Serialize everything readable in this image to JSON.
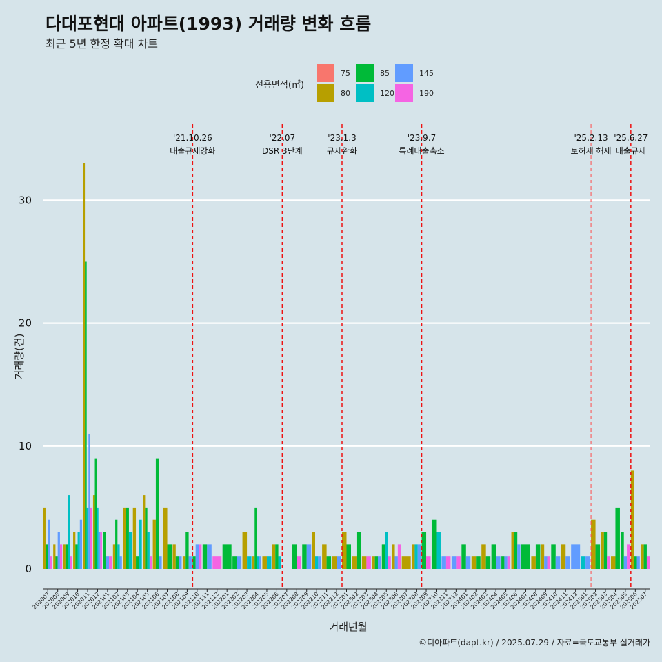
{
  "title": "다대포현대 아파트(1993) 거래량 변화 흐름",
  "subtitle": "최근 5년 한정 확대 차트",
  "caption": "©디아파트(dapt.kr) / 2025.07.29 / 자료=국토교통부 실거래가",
  "chart_data": {
    "type": "bar",
    "xlabel": "거래년월",
    "ylabel": "거래량(건)",
    "ylim": [
      -1.6,
      34.5
    ],
    "yticks": [
      0,
      10,
      20,
      30
    ],
    "grid": true,
    "legend": {
      "title": "전용면적(㎡)",
      "placement": "top",
      "entries": [
        {
          "name": "75",
          "color": "#F8766D"
        },
        {
          "name": "80",
          "color": "#B79F00"
        },
        {
          "name": "85",
          "color": "#00BA38"
        },
        {
          "name": "120",
          "color": "#00BFC4"
        },
        {
          "name": "145",
          "color": "#619CFF"
        },
        {
          "name": "190",
          "color": "#F564E3"
        }
      ]
    },
    "categories": [
      "202007",
      "202008",
      "202009",
      "202010",
      "202011",
      "202012",
      "202101",
      "202102",
      "202103",
      "202104",
      "202105",
      "202106",
      "202107",
      "202108",
      "202109",
      "202110",
      "202111",
      "202112",
      "202201",
      "202202",
      "202203",
      "202204",
      "202205",
      "202206",
      "202207",
      "202208",
      "202209",
      "202210",
      "202211",
      "202212",
      "202301",
      "202302",
      "202303",
      "202304",
      "202305",
      "202306",
      "202307",
      "202308",
      "202309",
      "202310",
      "202311",
      "202312",
      "202401",
      "202402",
      "202403",
      "202404",
      "202405",
      "202406",
      "202407",
      "202408",
      "202409",
      "202410",
      "202411",
      "202412",
      "202501",
      "202502",
      "202503",
      "202504",
      "202505",
      "202506",
      "202507"
    ],
    "bars": [
      [
        "202007",
        "80",
        5
      ],
      [
        "202007",
        "85",
        2
      ],
      [
        "202007",
        "145",
        4
      ],
      [
        "202007",
        "190",
        1
      ],
      [
        "202008",
        "80",
        2
      ],
      [
        "202008",
        "85",
        1
      ],
      [
        "202008",
        "145",
        3
      ],
      [
        "202008",
        "190",
        2
      ],
      [
        "202009",
        "80",
        2
      ],
      [
        "202009",
        "85",
        2
      ],
      [
        "202009",
        "120",
        6
      ],
      [
        "202009",
        "190",
        1
      ],
      [
        "202010",
        "80",
        3
      ],
      [
        "202010",
        "85",
        2
      ],
      [
        "202010",
        "120",
        3
      ],
      [
        "202010",
        "145",
        4
      ],
      [
        "202011",
        "80",
        33
      ],
      [
        "202011",
        "85",
        25
      ],
      [
        "202011",
        "120",
        5
      ],
      [
        "202011",
        "145",
        11
      ],
      [
        "202011",
        "190",
        5
      ],
      [
        "202012",
        "80",
        6
      ],
      [
        "202012",
        "85",
        9
      ],
      [
        "202012",
        "120",
        5
      ],
      [
        "202012",
        "145",
        3
      ],
      [
        "202012",
        "190",
        3
      ],
      [
        "202101",
        "85",
        3
      ],
      [
        "202101",
        "145",
        1
      ],
      [
        "202101",
        "190",
        1
      ],
      [
        "202102",
        "80",
        2
      ],
      [
        "202102",
        "85",
        4
      ],
      [
        "202102",
        "120",
        2
      ],
      [
        "202102",
        "145",
        1
      ],
      [
        "202103",
        "80",
        5
      ],
      [
        "202103",
        "85",
        5
      ],
      [
        "202103",
        "120",
        3
      ],
      [
        "202104",
        "80",
        5
      ],
      [
        "202104",
        "85",
        1
      ],
      [
        "202104",
        "120",
        4
      ],
      [
        "202105",
        "80",
        6
      ],
      [
        "202105",
        "85",
        5
      ],
      [
        "202105",
        "120",
        3
      ],
      [
        "202105",
        "190",
        1
      ],
      [
        "202106",
        "80",
        4
      ],
      [
        "202106",
        "85",
        9
      ],
      [
        "202106",
        "145",
        1
      ],
      [
        "202107",
        "80",
        5
      ],
      [
        "202107",
        "85",
        2
      ],
      [
        "202108",
        "80",
        2
      ],
      [
        "202108",
        "85",
        1
      ],
      [
        "202108",
        "145",
        1
      ],
      [
        "202109",
        "80",
        1
      ],
      [
        "202109",
        "85",
        3
      ],
      [
        "202109",
        "145",
        1
      ],
      [
        "202110",
        "85",
        1
      ],
      [
        "202110",
        "145",
        2
      ],
      [
        "202110",
        "190",
        2
      ],
      [
        "202111",
        "85",
        2
      ],
      [
        "202111",
        "145",
        2
      ],
      [
        "202112",
        "190",
        1
      ],
      [
        "202201",
        "85",
        2
      ],
      [
        "202202",
        "85",
        1
      ],
      [
        "202202",
        "145",
        1
      ],
      [
        "202203",
        "80",
        3
      ],
      [
        "202203",
        "120",
        1
      ],
      [
        "202204",
        "80",
        1
      ],
      [
        "202204",
        "85",
        5
      ],
      [
        "202204",
        "120",
        1
      ],
      [
        "202204",
        "145",
        1
      ],
      [
        "202205",
        "80",
        1
      ],
      [
        "202205",
        "120",
        1
      ],
      [
        "202206",
        "80",
        2
      ],
      [
        "202206",
        "85",
        2
      ],
      [
        "202206",
        "120",
        1
      ],
      [
        "202208",
        "85",
        2
      ],
      [
        "202208",
        "190",
        1
      ],
      [
        "202209",
        "85",
        2
      ],
      [
        "202209",
        "145",
        2
      ],
      [
        "202210",
        "80",
        3
      ],
      [
        "202210",
        "120",
        1
      ],
      [
        "202210",
        "145",
        1
      ],
      [
        "202211",
        "80",
        2
      ],
      [
        "202211",
        "85",
        1
      ],
      [
        "202212",
        "80",
        1
      ],
      [
        "202212",
        "145",
        1
      ],
      [
        "202301",
        "80",
        3
      ],
      [
        "202301",
        "85",
        2
      ],
      [
        "202302",
        "80",
        1
      ],
      [
        "202302",
        "85",
        3
      ],
      [
        "202303",
        "80",
        1
      ],
      [
        "202303",
        "190",
        1
      ],
      [
        "202304",
        "80",
        1
      ],
      [
        "202304",
        "85",
        1
      ],
      [
        "202304",
        "145",
        1
      ],
      [
        "202305",
        "85",
        2
      ],
      [
        "202305",
        "120",
        3
      ],
      [
        "202305",
        "190",
        1
      ],
      [
        "202306",
        "80",
        2
      ],
      [
        "202306",
        "145",
        1
      ],
      [
        "202306",
        "190",
        2
      ],
      [
        "202307",
        "80",
        1
      ],
      [
        "202308",
        "80",
        2
      ],
      [
        "202308",
        "120",
        2
      ],
      [
        "202308",
        "145",
        2
      ],
      [
        "202309",
        "85",
        3
      ],
      [
        "202309",
        "190",
        1
      ],
      [
        "202310",
        "85",
        4
      ],
      [
        "202310",
        "120",
        3
      ],
      [
        "202311",
        "145",
        1
      ],
      [
        "202311",
        "190",
        1
      ],
      [
        "202312",
        "145",
        1
      ],
      [
        "202312",
        "190",
        1
      ],
      [
        "202401",
        "85",
        2
      ],
      [
        "202401",
        "145",
        1
      ],
      [
        "202402",
        "80",
        1
      ],
      [
        "202402",
        "85",
        1
      ],
      [
        "202403",
        "80",
        2
      ],
      [
        "202403",
        "85",
        1
      ],
      [
        "202404",
        "85",
        2
      ],
      [
        "202404",
        "145",
        1
      ],
      [
        "202405",
        "85",
        1
      ],
      [
        "202405",
        "145",
        1
      ],
      [
        "202405",
        "190",
        1
      ],
      [
        "202406",
        "80",
        3
      ],
      [
        "202406",
        "85",
        3
      ],
      [
        "202406",
        "145",
        2
      ],
      [
        "202407",
        "85",
        2
      ],
      [
        "202408",
        "80",
        1
      ],
      [
        "202408",
        "85",
        2
      ],
      [
        "202409",
        "80",
        2
      ],
      [
        "202409",
        "145",
        1
      ],
      [
        "202409",
        "190",
        1
      ],
      [
        "202410",
        "85",
        2
      ],
      [
        "202410",
        "145",
        1
      ],
      [
        "202411",
        "80",
        2
      ],
      [
        "202411",
        "145",
        1
      ],
      [
        "202412",
        "145",
        2
      ],
      [
        "202501",
        "120",
        1
      ],
      [
        "202501",
        "145",
        1
      ],
      [
        "202502",
        "80",
        4
      ],
      [
        "202502",
        "85",
        2
      ],
      [
        "202503",
        "80",
        3
      ],
      [
        "202503",
        "85",
        3
      ],
      [
        "202503",
        "190",
        1
      ],
      [
        "202504",
        "80",
        1
      ],
      [
        "202504",
        "85",
        5
      ],
      [
        "202505",
        "85",
        3
      ],
      [
        "202505",
        "145",
        1
      ],
      [
        "202505",
        "190",
        2
      ],
      [
        "202506",
        "80",
        8
      ],
      [
        "202506",
        "85",
        1
      ],
      [
        "202506",
        "145",
        1
      ],
      [
        "202507",
        "80",
        2
      ],
      [
        "202507",
        "85",
        2
      ],
      [
        "202507",
        "190",
        1
      ]
    ],
    "events": [
      {
        "date_line1": "'21.10.26",
        "date_line2": "대출규제강화",
        "at": "202110",
        "style": "strong"
      },
      {
        "date_line1": "'22.07",
        "date_line2": "DSR 3단계",
        "at": "202207",
        "style": "strong"
      },
      {
        "date_line1": "'23.1.3",
        "date_line2": "규제완화",
        "at": "202301",
        "style": "strong"
      },
      {
        "date_line1": "'23.9.7",
        "date_line2": "특례대출축소",
        "at": "202309",
        "style": "strong"
      },
      {
        "date_line1": "'25.2.13",
        "date_line2": "토허제 해제",
        "at": "202502",
        "style": "light"
      },
      {
        "date_line1": "'25.6.27",
        "date_line2": "대출규제",
        "at": "202506",
        "style": "strong"
      }
    ]
  }
}
